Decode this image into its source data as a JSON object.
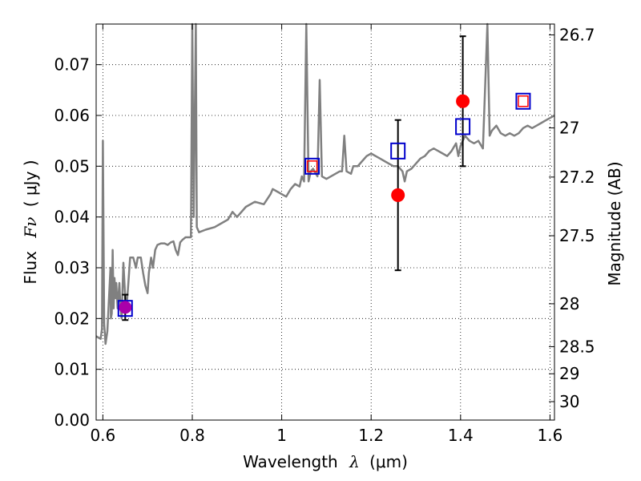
{
  "chart_data": {
    "type": "line",
    "xlabel": {
      "prefix": "Wavelength",
      "symbol": "λ",
      "unit": "(μm)"
    },
    "ylabel": {
      "prefix": "Flux",
      "symbol": "Fν",
      "unit": "( μJy )"
    },
    "ylabel_right": "Magnitude (AB)",
    "xlim": [
      0.585,
      1.61
    ],
    "ylim": [
      0.0,
      0.078
    ],
    "grid": true,
    "x_ticks": [
      {
        "value": 0.6,
        "label": "0.6"
      },
      {
        "value": 0.8,
        "label": "0.8"
      },
      {
        "value": 1.0,
        "label": "1"
      },
      {
        "value": 1.2,
        "label": "1.2"
      },
      {
        "value": 1.4,
        "label": "1.4"
      },
      {
        "value": 1.6,
        "label": "1.6"
      }
    ],
    "y_ticks": [
      {
        "value": 0.0,
        "label": "0.00"
      },
      {
        "value": 0.01,
        "label": "0.01"
      },
      {
        "value": 0.02,
        "label": "0.02"
      },
      {
        "value": 0.03,
        "label": "0.03"
      },
      {
        "value": 0.04,
        "label": "0.04"
      },
      {
        "value": 0.05,
        "label": "0.05"
      },
      {
        "value": 0.06,
        "label": "0.06"
      },
      {
        "value": 0.07,
        "label": "0.07"
      }
    ],
    "right_ticks": [
      {
        "mag": 26.7,
        "label": "26.7"
      },
      {
        "mag": 27.0,
        "label": "27"
      },
      {
        "mag": 27.2,
        "label": "27.2"
      },
      {
        "mag": 27.5,
        "label": "27.5"
      },
      {
        "mag": 28.0,
        "label": "28"
      },
      {
        "mag": 28.5,
        "label": "28.5"
      },
      {
        "mag": 29.0,
        "label": "29"
      },
      {
        "mag": 30.0,
        "label": "30"
      }
    ],
    "colors": {
      "spectrum": "#808080",
      "observed": "#ff0000",
      "model_box": "#0000cc",
      "model_inner": "#ff0000",
      "special_point": "#aa00aa",
      "errorbar": "#000000"
    },
    "series": [
      {
        "kind": "spectrum",
        "points": [
          [
            0.585,
            0.0165
          ],
          [
            0.595,
            0.016
          ],
          [
            0.598,
            0.018
          ],
          [
            0.6,
            0.055
          ],
          [
            0.603,
            0.019
          ],
          [
            0.606,
            0.015
          ],
          [
            0.61,
            0.0175
          ],
          [
            0.617,
            0.03
          ],
          [
            0.618,
            0.02
          ],
          [
            0.62,
            0.021
          ],
          [
            0.622,
            0.0335
          ],
          [
            0.624,
            0.022
          ],
          [
            0.626,
            0.028
          ],
          [
            0.628,
            0.024
          ],
          [
            0.63,
            0.027
          ],
          [
            0.633,
            0.022
          ],
          [
            0.637,
            0.027
          ],
          [
            0.639,
            0.023
          ],
          [
            0.642,
            0.02
          ],
          [
            0.646,
            0.031
          ],
          [
            0.65,
            0.024
          ],
          [
            0.653,
            0.022
          ],
          [
            0.657,
            0.027
          ],
          [
            0.661,
            0.032
          ],
          [
            0.668,
            0.032
          ],
          [
            0.674,
            0.03
          ],
          [
            0.678,
            0.032
          ],
          [
            0.685,
            0.032
          ],
          [
            0.69,
            0.029
          ],
          [
            0.695,
            0.0265
          ],
          [
            0.7,
            0.025
          ],
          [
            0.703,
            0.029
          ],
          [
            0.708,
            0.032
          ],
          [
            0.712,
            0.03
          ],
          [
            0.717,
            0.0335
          ],
          [
            0.722,
            0.0345
          ],
          [
            0.73,
            0.0348
          ],
          [
            0.738,
            0.0348
          ],
          [
            0.745,
            0.0345
          ],
          [
            0.752,
            0.035
          ],
          [
            0.758,
            0.0352
          ],
          [
            0.763,
            0.0335
          ],
          [
            0.768,
            0.0325
          ],
          [
            0.773,
            0.035
          ],
          [
            0.778,
            0.0355
          ],
          [
            0.785,
            0.036
          ],
          [
            0.792,
            0.036
          ],
          [
            0.797,
            0.036
          ],
          [
            0.8,
            0.078
          ],
          [
            0.803,
            0.04
          ],
          [
            0.808,
            0.078
          ],
          [
            0.81,
            0.038
          ],
          [
            0.815,
            0.037
          ],
          [
            0.83,
            0.0375
          ],
          [
            0.85,
            0.038
          ],
          [
            0.87,
            0.039
          ],
          [
            0.88,
            0.0395
          ],
          [
            0.89,
            0.041
          ],
          [
            0.9,
            0.04
          ],
          [
            0.92,
            0.042
          ],
          [
            0.94,
            0.043
          ],
          [
            0.96,
            0.0425
          ],
          [
            0.975,
            0.0445
          ],
          [
            0.98,
            0.0455
          ],
          [
            0.99,
            0.045
          ],
          [
            1.0,
            0.0445
          ],
          [
            1.01,
            0.044
          ],
          [
            1.02,
            0.0455
          ],
          [
            1.03,
            0.0465
          ],
          [
            1.04,
            0.046
          ],
          [
            1.045,
            0.048
          ],
          [
            1.05,
            0.047
          ],
          [
            1.055,
            0.078
          ],
          [
            1.06,
            0.047
          ],
          [
            1.065,
            0.049
          ],
          [
            1.07,
            0.0495
          ],
          [
            1.08,
            0.048
          ],
          [
            1.085,
            0.067
          ],
          [
            1.09,
            0.048
          ],
          [
            1.1,
            0.0475
          ],
          [
            1.12,
            0.0485
          ],
          [
            1.13,
            0.049
          ],
          [
            1.135,
            0.049
          ],
          [
            1.14,
            0.056
          ],
          [
            1.145,
            0.049
          ],
          [
            1.155,
            0.0485
          ],
          [
            1.16,
            0.05
          ],
          [
            1.17,
            0.05
          ],
          [
            1.18,
            0.051
          ],
          [
            1.19,
            0.052
          ],
          [
            1.2,
            0.0525
          ],
          [
            1.21,
            0.052
          ],
          [
            1.22,
            0.0515
          ],
          [
            1.23,
            0.051
          ],
          [
            1.24,
            0.0505
          ],
          [
            1.25,
            0.05
          ],
          [
            1.26,
            0.05
          ],
          [
            1.27,
            0.049
          ],
          [
            1.275,
            0.047
          ],
          [
            1.28,
            0.049
          ],
          [
            1.29,
            0.0495
          ],
          [
            1.3,
            0.0505
          ],
          [
            1.31,
            0.0515
          ],
          [
            1.32,
            0.052
          ],
          [
            1.33,
            0.053
          ],
          [
            1.34,
            0.0535
          ],
          [
            1.35,
            0.053
          ],
          [
            1.36,
            0.0525
          ],
          [
            1.37,
            0.052
          ],
          [
            1.38,
            0.053
          ],
          [
            1.39,
            0.0545
          ],
          [
            1.395,
            0.052
          ],
          [
            1.4,
            0.054
          ],
          [
            1.41,
            0.056
          ],
          [
            1.42,
            0.055
          ],
          [
            1.43,
            0.0545
          ],
          [
            1.44,
            0.055
          ],
          [
            1.45,
            0.0535
          ],
          [
            1.46,
            0.078
          ],
          [
            1.465,
            0.056
          ],
          [
            1.47,
            0.057
          ],
          [
            1.48,
            0.058
          ],
          [
            1.49,
            0.0565
          ],
          [
            1.5,
            0.056
          ],
          [
            1.51,
            0.0565
          ],
          [
            1.52,
            0.056
          ],
          [
            1.53,
            0.0565
          ],
          [
            1.54,
            0.0575
          ],
          [
            1.55,
            0.058
          ],
          [
            1.56,
            0.0575
          ],
          [
            1.57,
            0.058
          ],
          [
            1.58,
            0.0585
          ],
          [
            1.59,
            0.059
          ],
          [
            1.6,
            0.0595
          ],
          [
            1.61,
            0.06
          ]
        ]
      },
      {
        "kind": "observed",
        "points": [
          {
            "x": 1.26,
            "y": 0.0443,
            "yerr_low": 0.0148,
            "yerr_high": 0.0148
          },
          {
            "x": 1.405,
            "y": 0.0628,
            "yerr_low": 0.0128,
            "yerr_high": 0.0128
          }
        ]
      },
      {
        "kind": "model_boxes",
        "points": [
          {
            "x": 0.65,
            "y": 0.022
          },
          {
            "x": 1.068,
            "y": 0.05
          },
          {
            "x": 1.26,
            "y": 0.053
          },
          {
            "x": 1.405,
            "y": 0.0578
          },
          {
            "x": 1.54,
            "y": 0.0628
          }
        ]
      },
      {
        "kind": "model_inner_boxes",
        "points": [
          {
            "x": 1.068,
            "y": 0.05
          },
          {
            "x": 1.54,
            "y": 0.0628
          }
        ]
      },
      {
        "kind": "special_point",
        "points": [
          {
            "x": 0.65,
            "y": 0.0222,
            "yerr_low": 0.0025,
            "yerr_high": 0.0025
          }
        ]
      }
    ]
  }
}
